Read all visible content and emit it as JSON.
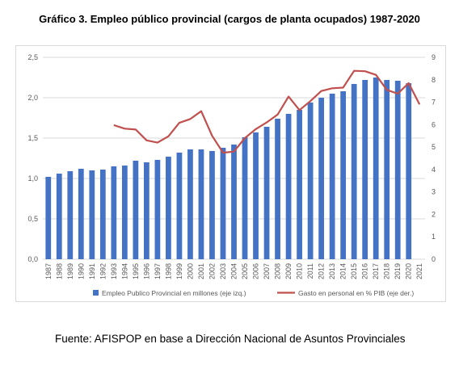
{
  "title": "Gráfico 3. Empleo público provincial (cargos de planta ocupados) 1987-2020",
  "source": "Fuente: AFISPOP en base a Dirección Nacional de Asuntos Provinciales",
  "chart_data": {
    "type": "bar+line",
    "title": "Gráfico 3. Empleo público provincial (cargos de planta ocupados) 1987-2020",
    "categories": [
      "1987",
      "1988",
      "1989",
      "1990",
      "1991",
      "1992",
      "1993",
      "1994",
      "1995",
      "1996",
      "1997",
      "1998",
      "1999",
      "2000",
      "2001",
      "2002",
      "2003",
      "2004",
      "2005",
      "2006",
      "2007",
      "2008",
      "2009",
      "2010",
      "2011",
      "2012",
      "2013",
      "2014",
      "2015",
      "2016",
      "2017",
      "2018",
      "2019",
      "2020",
      "2021"
    ],
    "y_left": {
      "ylim": [
        0,
        2.5
      ],
      "ticks": [
        "0,0",
        "0,5",
        "1,0",
        "1,5",
        "2,0",
        "2,5"
      ]
    },
    "y_right": {
      "ylim": [
        0,
        9
      ],
      "ticks": [
        "0",
        "1",
        "2",
        "3",
        "4",
        "5",
        "6",
        "7",
        "8",
        "9"
      ]
    },
    "grid": "horizontal",
    "legend_position": "bottom",
    "series": [
      {
        "name": "Empleo Publico Provincial en millones (eje izq.)",
        "type": "bar",
        "axis": "left",
        "color": "#4472c4",
        "values": [
          1.02,
          1.06,
          1.09,
          1.12,
          1.1,
          1.11,
          1.15,
          1.16,
          1.22,
          1.2,
          1.23,
          1.27,
          1.32,
          1.36,
          1.36,
          1.34,
          1.38,
          1.42,
          1.51,
          1.57,
          1.64,
          1.74,
          1.8,
          1.85,
          1.94,
          2.0,
          2.05,
          2.08,
          2.17,
          2.22,
          2.25,
          2.22,
          2.21,
          2.18,
          null
        ]
      },
      {
        "name": "Gasto en personal en % PIB (eje der.)",
        "type": "line",
        "axis": "right",
        "color": "#c0504d",
        "values": [
          null,
          null,
          null,
          null,
          null,
          null,
          5.98,
          5.82,
          5.78,
          5.3,
          5.2,
          5.48,
          6.08,
          6.25,
          6.6,
          5.5,
          4.75,
          4.8,
          5.4,
          5.8,
          6.1,
          6.45,
          7.25,
          6.65,
          7.05,
          7.5,
          7.62,
          7.65,
          8.4,
          8.38,
          8.22,
          7.55,
          7.38,
          7.85,
          6.9
        ]
      }
    ]
  }
}
